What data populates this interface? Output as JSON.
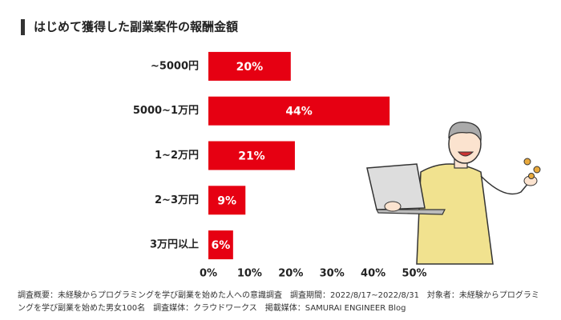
{
  "chart_data": {
    "type": "bar",
    "orientation": "horizontal",
    "title": "はじめて獲得した副業案件の報酬金額",
    "categories": [
      "~5000円",
      "5000~1万円",
      "1~2万円",
      "2~3万円",
      "3万円以上"
    ],
    "values": [
      20,
      44,
      21,
      9,
      6
    ],
    "value_labels": [
      "20%",
      "44%",
      "21%",
      "9%",
      "6%"
    ],
    "color": "#e60012",
    "xlim": [
      0,
      50
    ],
    "xticks": [
      {
        "value": 0,
        "label": "0%"
      },
      {
        "value": 10,
        "label": "10%"
      },
      {
        "value": 20,
        "label": "20%"
      },
      {
        "value": 30,
        "label": "30%"
      },
      {
        "value": 40,
        "label": "40%"
      },
      {
        "value": 50,
        "label": "50%"
      }
    ],
    "grid": false,
    "note": "調査概要：未経験からプログラミングを学び副業を始めた人への意識調査　調査期間：2022/8/17~2022/8/31　対象者：未経験からプログラミングを学び副業を始めた男女100名　調査媒体：クラウドワークス　掲載媒体：SAMURAI ENGINEER Blog"
  }
}
